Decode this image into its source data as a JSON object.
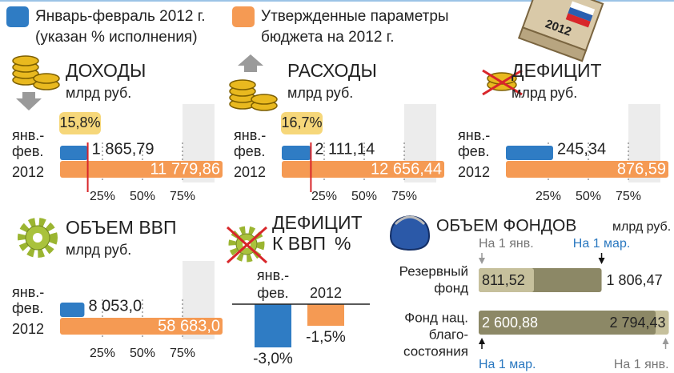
{
  "legend": [
    {
      "name": [
        "Январь-февраль 2012 г.",
        "(указан % исполнения)"
      ],
      "color": "#2f7cc4"
    },
    {
      "name": [
        "Утвержденные параметры",
        "бюджета на 2012 г."
      ],
      "color": "#f59a53"
    }
  ],
  "badge_year": "2012",
  "chart_data": [
    {
      "type": "bar",
      "title": "ДОХОДЫ",
      "unit": "млрд руб.",
      "categories": [
        [
          "янв.-",
          "фев."
        ],
        [
          "2012"
        ]
      ],
      "values": [
        1865.79,
        11779.86
      ],
      "value_labels": [
        "1 865,79",
        "11 779,86"
      ],
      "share_value": 15.8,
      "share_label": "15,8%",
      "xlim": [
        0,
        100
      ],
      "xticks": [
        {
          "value": 25,
          "label": "25%"
        },
        {
          "value": 50,
          "label": "50%"
        },
        {
          "value": 75,
          "label": "75%"
        }
      ]
    },
    {
      "type": "bar",
      "title": "РАСХОДЫ",
      "unit": "млрд руб.",
      "categories": [
        [
          "янв.-",
          "фев."
        ],
        [
          "2012"
        ]
      ],
      "values": [
        2111.14,
        12656.44
      ],
      "value_labels": [
        "2 111,14",
        "12 656,44"
      ],
      "share_value": 16.7,
      "share_label": "16,7%",
      "xlim": [
        0,
        100
      ],
      "xticks": [
        {
          "value": 25,
          "label": "25%"
        },
        {
          "value": 50,
          "label": "50%"
        },
        {
          "value": 75,
          "label": "75%"
        }
      ]
    },
    {
      "type": "bar",
      "title": "ДЕФИЦИТ",
      "unit": "млрд руб.",
      "categories": [
        [
          "янв.-",
          "фев."
        ],
        [
          "2012"
        ]
      ],
      "values": [
        245.34,
        876.59
      ],
      "value_labels": [
        "245,34",
        "876,59"
      ],
      "xlim": [
        0,
        100
      ],
      "xticks": [
        {
          "value": 25,
          "label": "25%"
        },
        {
          "value": 50,
          "label": "50%"
        },
        {
          "value": 75,
          "label": "75%"
        }
      ]
    },
    {
      "type": "bar",
      "title": "ОБЪЕМ ВВП",
      "unit": "млрд руб.",
      "categories": [
        [
          "янв.-",
          "фев."
        ],
        [
          "2012"
        ]
      ],
      "values": [
        8053.0,
        58683.0
      ],
      "value_labels": [
        "8 053,0",
        "58 683,0"
      ],
      "xlim": [
        0,
        100
      ],
      "xticks": [
        {
          "value": 25,
          "label": "25%"
        },
        {
          "value": 50,
          "label": "50%"
        },
        {
          "value": 75,
          "label": "75%"
        }
      ]
    },
    {
      "type": "column",
      "title": "ДЕФИЦИТ",
      "subtitle": "К ВВП",
      "unit": "%",
      "categories": [
        [
          "янв.-",
          "фев."
        ],
        [
          "2012"
        ]
      ],
      "values": [
        -3.0,
        -1.5
      ],
      "value_labels": [
        "-3,0%",
        "-1,5%"
      ],
      "ylim": [
        -3.5,
        0.5
      ]
    },
    {
      "type": "overlap",
      "title": "ОБЪЕМ ФОНДОВ",
      "unit": "млрд руб.",
      "categories": [
        [
          "Резервный",
          "фонд"
        ],
        [
          "Фонд нац.",
          "благо-",
          "состояния"
        ]
      ],
      "series": [
        {
          "name": "На 1 янв.",
          "color": "#c6c09c",
          "text_color": "#777777",
          "values": [
            811.52,
            2794.43
          ],
          "value_labels": [
            "811,52",
            "2 794,43"
          ]
        },
        {
          "name": "На 1 мар.",
          "color": "#8c8866",
          "text_color": "#2a78c0",
          "values": [
            1806.47,
            2600.88
          ],
          "value_labels": [
            "1 806,47",
            "2 600,88"
          ]
        }
      ],
      "xlim": [
        0,
        2800
      ]
    }
  ]
}
